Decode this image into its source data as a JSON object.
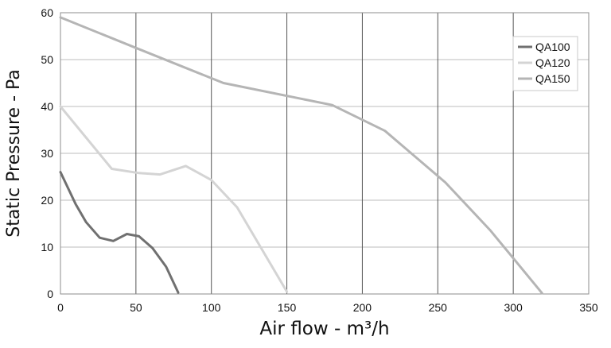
{
  "chart_data": {
    "type": "line",
    "xlabel": "Air flow - m³/h",
    "ylabel": "Static Pressure - Pa",
    "xlim": [
      0,
      350
    ],
    "ylim": [
      0,
      60
    ],
    "xticks": [
      "0",
      "50",
      "100",
      "150",
      "200",
      "250",
      "300",
      "350"
    ],
    "yticks": [
      "0",
      "10",
      "20",
      "30",
      "40",
      "50",
      "60"
    ],
    "grid": "on",
    "legend_position": "top-right",
    "series": [
      {
        "name": "QA100",
        "color": "#707070",
        "x": [
          0,
          10,
          17,
          26,
          35,
          44,
          52,
          61,
          70,
          78
        ],
        "y": [
          26,
          19.2,
          15.3,
          12,
          11.3,
          12.8,
          12.3,
          9.8,
          5.8,
          0.3
        ]
      },
      {
        "name": "QA120",
        "color": "#d4d4d4",
        "x": [
          0,
          34,
          52,
          66,
          83,
          100,
          117,
          150
        ],
        "y": [
          40,
          26.7,
          25.8,
          25.5,
          27.3,
          24.3,
          18.5,
          0.5
        ]
      },
      {
        "name": "QA150",
        "color": "#b5b5b5",
        "x": [
          0,
          50,
          108,
          180,
          215,
          255,
          285,
          319
        ],
        "y": [
          59,
          52.5,
          45,
          40.3,
          34.8,
          23.8,
          13.5,
          0.2
        ]
      }
    ]
  }
}
